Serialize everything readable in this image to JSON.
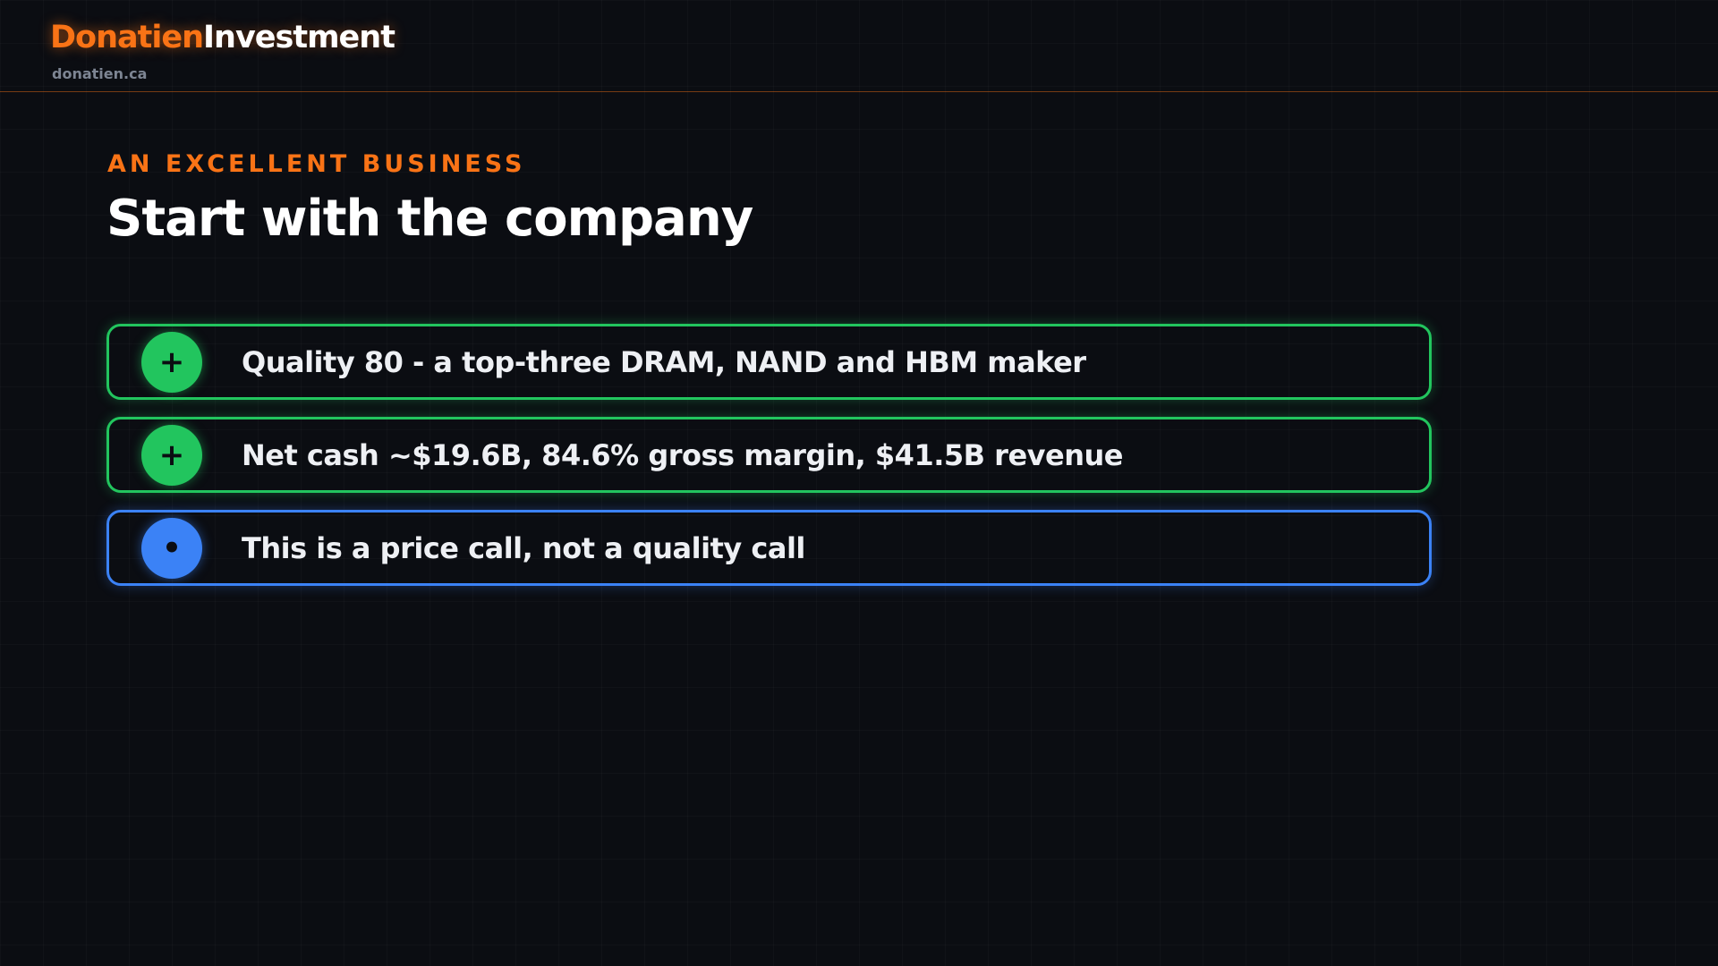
{
  "header": {
    "brand_primary": "Donatien",
    "brand_secondary": "Investment",
    "site": "donatien.ca"
  },
  "slide": {
    "kicker": "AN EXCELLENT BUSINESS",
    "title": "Start with the company",
    "items": [
      {
        "icon": "+",
        "text": "Quality 80 - a top-three DRAM, NAND and HBM maker",
        "color": "#22c55e"
      },
      {
        "icon": "+",
        "text": "Net cash ~$19.6B, 84.6% gross margin, $41.5B revenue",
        "color": "#22c55e"
      },
      {
        "icon": "•",
        "text": "This is a price call, not a quality call",
        "color": "#3b82f6"
      }
    ]
  }
}
